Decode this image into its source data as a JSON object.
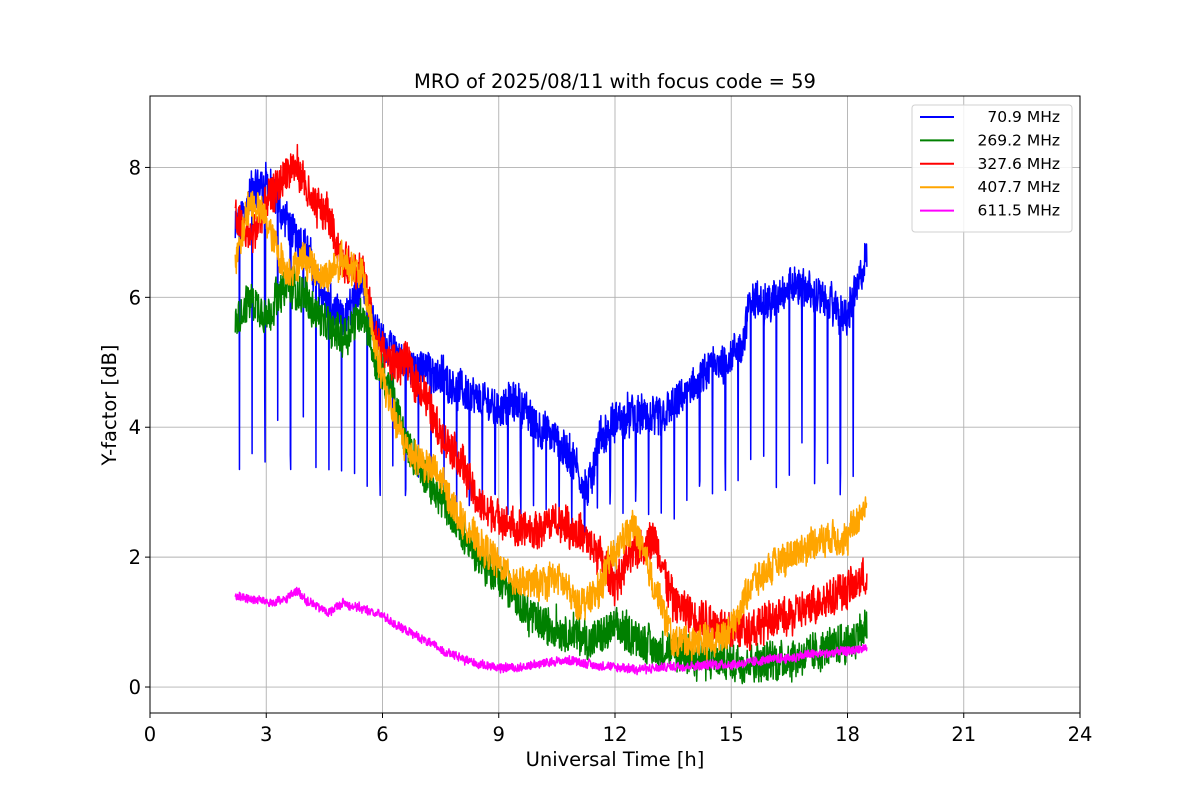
{
  "chart_data": {
    "type": "line",
    "title": "MRO of 2025/08/11 with focus code = 59",
    "xlabel": "Universal Time [h]",
    "ylabel": "Y-factor [dB]",
    "xlim": [
      0,
      24
    ],
    "ylim": [
      -0.4,
      9.1
    ],
    "xticks": [
      0,
      3,
      6,
      9,
      12,
      15,
      18,
      21,
      24
    ],
    "yticks": [
      0,
      2,
      4,
      6,
      8
    ],
    "grid": true,
    "legend_position": "top-right",
    "series": [
      {
        "name": "70.9 MHz",
        "color": "#0000ff",
        "noise": 0.35,
        "dips": true,
        "dip_period": 0.33,
        "dip_start": 2.3,
        "dip_end": 18.4,
        "x": [
          2.2,
          2.6,
          3.0,
          3.5,
          4.0,
          4.5,
          5.0,
          5.5,
          5.8,
          6.2,
          6.6,
          7.0,
          7.5,
          8.0,
          8.5,
          9.0,
          9.5,
          10.0,
          10.5,
          11.0,
          11.3,
          11.6,
          12.0,
          12.5,
          13.0,
          13.5,
          14.0,
          14.5,
          15.0,
          15.3,
          15.5,
          16.0,
          16.5,
          17.0,
          17.5,
          18.0,
          18.5
        ],
        "y": [
          7.0,
          7.6,
          7.8,
          7.2,
          6.8,
          6.0,
          5.6,
          6.3,
          5.5,
          5.2,
          5.0,
          4.9,
          4.8,
          4.6,
          4.4,
          4.3,
          4.4,
          4.0,
          3.8,
          3.4,
          3.0,
          3.8,
          4.1,
          4.2,
          4.1,
          4.3,
          4.6,
          4.9,
          5.1,
          5.3,
          6.0,
          5.9,
          6.2,
          6.1,
          5.9,
          5.7,
          6.6
        ]
      },
      {
        "name": "269.2 MHz",
        "color": "#008000",
        "noise": 0.35,
        "dips": false,
        "x": [
          2.2,
          2.6,
          3.0,
          3.5,
          4.0,
          4.5,
          5.0,
          5.5,
          5.8,
          6.2,
          6.6,
          7.0,
          7.5,
          8.0,
          8.5,
          9.0,
          9.5,
          10.0,
          10.5,
          11.0,
          11.5,
          12.0,
          12.5,
          13.0,
          13.5,
          14.0,
          14.5,
          15.0,
          15.5,
          16.0,
          16.5,
          17.0,
          17.5,
          18.0,
          18.5
        ],
        "y": [
          5.6,
          6.0,
          5.7,
          6.2,
          6.0,
          5.6,
          5.4,
          5.8,
          5.0,
          4.6,
          3.8,
          3.3,
          2.9,
          2.4,
          2.0,
          1.7,
          1.3,
          1.0,
          0.9,
          0.8,
          0.7,
          0.9,
          0.8,
          0.6,
          0.5,
          0.5,
          0.4,
          0.4,
          0.4,
          0.4,
          0.45,
          0.5,
          0.6,
          0.7,
          0.9
        ]
      },
      {
        "name": "327.6 MHz",
        "color": "#ff0000",
        "noise": 0.35,
        "dips": false,
        "x": [
          2.2,
          2.6,
          3.0,
          3.5,
          3.8,
          4.2,
          4.6,
          5.0,
          5.5,
          5.8,
          6.2,
          6.6,
          7.0,
          7.5,
          8.0,
          8.5,
          9.0,
          9.5,
          10.0,
          10.5,
          11.0,
          11.5,
          12.0,
          12.5,
          13.0,
          13.5,
          14.0,
          14.5,
          15.0,
          15.5,
          16.0,
          16.5,
          17.0,
          17.5,
          18.0,
          18.5
        ],
        "y": [
          7.2,
          6.9,
          7.4,
          7.9,
          8.0,
          7.4,
          7.3,
          6.5,
          6.4,
          5.4,
          5.0,
          5.0,
          4.6,
          3.9,
          3.5,
          2.8,
          2.6,
          2.4,
          2.4,
          2.6,
          2.4,
          2.1,
          1.6,
          2.1,
          2.3,
          1.3,
          1.1,
          1.0,
          0.9,
          0.9,
          1.0,
          1.1,
          1.2,
          1.4,
          1.5,
          1.7
        ]
      },
      {
        "name": "407.7 MHz",
        "color": "#ffa500",
        "noise": 0.3,
        "dips": false,
        "x": [
          2.2,
          2.6,
          3.0,
          3.5,
          4.0,
          4.5,
          5.0,
          5.5,
          5.8,
          6.2,
          6.6,
          7.0,
          7.5,
          8.0,
          8.5,
          9.0,
          9.5,
          10.0,
          10.5,
          11.0,
          11.5,
          12.0,
          12.5,
          13.0,
          13.5,
          14.0,
          14.5,
          15.0,
          15.5,
          16.0,
          16.5,
          17.0,
          17.5,
          18.0,
          18.5
        ],
        "y": [
          6.5,
          7.5,
          7.2,
          6.4,
          6.6,
          6.3,
          6.6,
          6.3,
          5.3,
          4.3,
          3.7,
          3.5,
          3.2,
          2.6,
          2.2,
          1.9,
          1.6,
          1.6,
          1.7,
          1.3,
          1.4,
          2.1,
          2.5,
          1.6,
          0.7,
          0.7,
          0.7,
          0.9,
          1.6,
          1.8,
          2.0,
          2.2,
          2.3,
          2.3,
          2.8
        ]
      },
      {
        "name": "611.5 MHz",
        "color": "#ff00ff",
        "noise": 0.08,
        "dips": false,
        "x": [
          2.2,
          2.7,
          3.2,
          3.5,
          3.8,
          4.1,
          4.6,
          5.0,
          5.5,
          6.0,
          6.5,
          7.0,
          7.5,
          8.0,
          8.5,
          9.0,
          9.5,
          10.0,
          10.5,
          11.0,
          11.5,
          12.0,
          12.5,
          13.0,
          13.5,
          14.0,
          14.5,
          15.0,
          15.5,
          16.0,
          16.5,
          17.0,
          17.5,
          18.0,
          18.5
        ],
        "y": [
          1.4,
          1.35,
          1.3,
          1.35,
          1.48,
          1.3,
          1.15,
          1.3,
          1.2,
          1.1,
          0.9,
          0.75,
          0.58,
          0.45,
          0.35,
          0.3,
          0.3,
          0.35,
          0.4,
          0.4,
          0.33,
          0.3,
          0.28,
          0.28,
          0.32,
          0.33,
          0.35,
          0.35,
          0.38,
          0.43,
          0.45,
          0.5,
          0.52,
          0.55,
          0.6
        ]
      }
    ]
  }
}
